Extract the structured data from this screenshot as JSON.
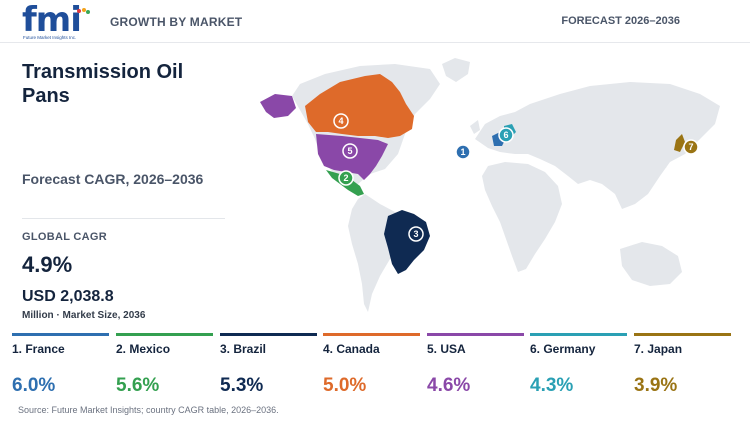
{
  "header": {
    "logo_text": "fmi",
    "logo_sub": "Future Market Insights Inc.",
    "left_label": "GROWTH BY MARKET",
    "right_label": "FORECAST 2026–2036"
  },
  "title": "Transmission Oil Pans",
  "subtitle": "Forecast CAGR, 2026–2036",
  "global": {
    "label": "GLOBAL CAGR",
    "cagr": "4.9%",
    "market_size": "USD 2,038.8",
    "note": "Million · Market Size, 2036"
  },
  "source": "Source: Future Market Insights; country CAGR table, 2026–2036.",
  "chart_data": {
    "type": "table",
    "categories": [
      "1. France",
      "2. Mexico",
      "3. Brazil",
      "4. Canada",
      "5. USA",
      "6. Germany",
      "7. Japan"
    ],
    "values": [
      6.0,
      5.6,
      5.3,
      5.0,
      4.6,
      4.3,
      3.9
    ],
    "labels": [
      "6.0%",
      "5.6%",
      "5.3%",
      "5.0%",
      "4.6%",
      "4.3%",
      "3.9%"
    ],
    "colors": [
      "#2e6fb0",
      "#34a050",
      "#0f2a52",
      "#de6a2a",
      "#8a48a8",
      "#2aa0b4",
      "#9a7414"
    ],
    "markers": [
      "1",
      "2",
      "3",
      "4",
      "5",
      "6",
      "7"
    ]
  }
}
